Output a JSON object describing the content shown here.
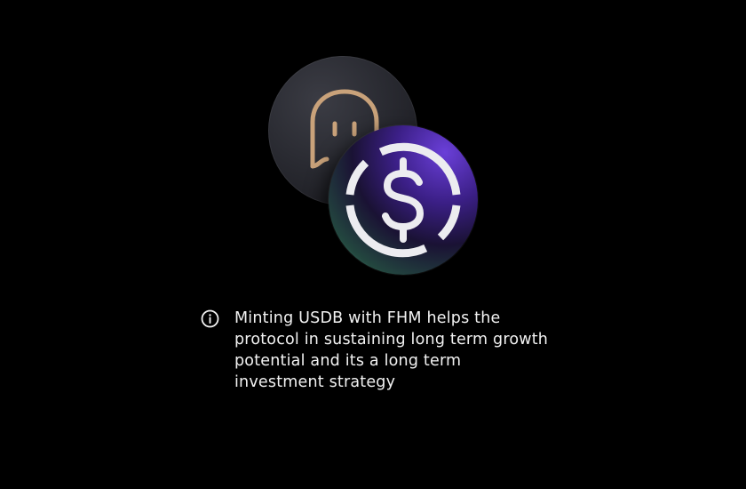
{
  "tokens": [
    {
      "name": "FHM",
      "icon": "ghost-icon",
      "color": "#c9a27a"
    },
    {
      "name": "USDB",
      "icon": "dollar-coin-icon",
      "color": "#e8e8ec"
    }
  ],
  "info": {
    "icon": "info-icon",
    "message": "Minting USDB with FHM helps the protocol in sustaining long term growth potential and its a long term investment strategy"
  },
  "colors": {
    "background": "#000000",
    "text": "#f2f2f2",
    "fhm_accent": "#c9a27a",
    "usdb_purple": "#5a34c4",
    "usdb_teal": "#5fa592"
  }
}
